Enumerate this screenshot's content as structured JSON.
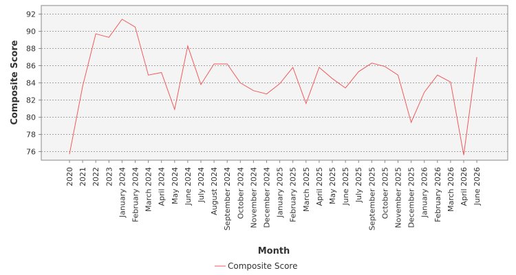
{
  "chart_data": {
    "type": "line",
    "title": "",
    "xlabel": "Month",
    "ylabel": "Composite Score",
    "ylim": [
      75,
      93
    ],
    "yticks": [
      76,
      78,
      80,
      82,
      84,
      86,
      88,
      90,
      92
    ],
    "grid": true,
    "legend_position": "bottom-center",
    "plot_background": "#f4f4f4",
    "grid_color": "#888888",
    "categories": [
      "2020",
      "2021",
      "2022",
      "2023",
      "January 2024",
      "February 2024",
      "March 2024",
      "April 2024",
      "May 2024",
      "June 2024",
      "July 2024",
      "August 2024",
      "September 2024",
      "October 2024",
      "November 2024",
      "December 2024",
      "January 2025",
      "February 2025",
      "March 2025",
      "April 2025",
      "May 2025",
      "June 2025",
      "July 2025",
      "September 2025",
      "October 2025",
      "November 2025",
      "December 2025",
      "January 2026",
      "February 2026",
      "March 2026",
      "April 2026",
      "June 2026"
    ],
    "series": [
      {
        "name": "Composite Score",
        "color": "#f05a5a",
        "values": [
          75.7,
          83.6,
          89.7,
          89.3,
          91.4,
          90.5,
          84.9,
          85.2,
          80.9,
          88.3,
          83.8,
          86.2,
          86.2,
          84.0,
          83.1,
          82.7,
          83.9,
          85.8,
          81.6,
          85.8,
          84.5,
          83.4,
          85.3,
          86.3,
          85.9,
          84.9,
          79.4,
          82.9,
          84.9,
          84.1,
          75.6,
          87.0
        ]
      }
    ]
  }
}
